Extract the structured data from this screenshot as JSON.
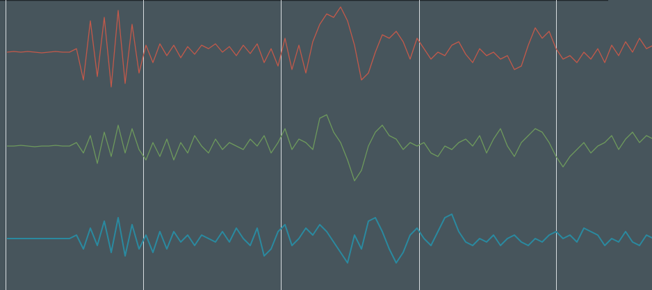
{
  "chart_data": {
    "type": "line",
    "grid": true,
    "series": [
      {
        "color": "#c4594a",
        "values": [
          0,
          1,
          0,
          1,
          0,
          -1,
          0,
          1,
          0,
          0,
          5,
          -40,
          45,
          -35,
          50,
          -50,
          60,
          -45,
          40,
          -30,
          10,
          -15,
          12,
          -5,
          10,
          -8,
          8,
          -3,
          10,
          5,
          12,
          0,
          8,
          -5,
          10,
          -2,
          12,
          -15,
          5,
          -20,
          20,
          -25,
          10,
          -30,
          15,
          40,
          55,
          50,
          65,
          45,
          10,
          -40,
          -30,
          0,
          25,
          20,
          30,
          15,
          -10,
          20,
          5,
          -10,
          0,
          -5,
          10,
          15,
          -3,
          -15,
          5,
          -5,
          0,
          -10,
          -5,
          -25,
          -20,
          10,
          35,
          20,
          30,
          5,
          -10,
          -5,
          -15,
          0,
          -10,
          5,
          -15,
          10,
          -5,
          15,
          0,
          20,
          5,
          10
        ]
      },
      {
        "color": "#6e9a5c",
        "values": [
          0,
          0,
          1,
          0,
          -1,
          0,
          0,
          1,
          0,
          0,
          5,
          -10,
          15,
          -25,
          20,
          -15,
          30,
          -10,
          25,
          -5,
          -20,
          5,
          -15,
          10,
          -20,
          5,
          -10,
          15,
          0,
          -10,
          10,
          -5,
          5,
          0,
          -5,
          10,
          0,
          15,
          -10,
          5,
          25,
          -5,
          10,
          5,
          -5,
          40,
          45,
          20,
          5,
          -20,
          -50,
          -35,
          0,
          20,
          30,
          15,
          10,
          -5,
          5,
          0,
          5,
          -10,
          -15,
          0,
          -5,
          5,
          10,
          0,
          15,
          -10,
          10,
          25,
          0,
          -15,
          5,
          15,
          25,
          20,
          5,
          -15,
          -30,
          -15,
          -5,
          5,
          -10,
          0,
          5,
          15,
          -5,
          10,
          20,
          5,
          15,
          10
        ]
      },
      {
        "color": "#2a8aa0",
        "values": [
          0,
          0,
          0,
          0,
          0,
          0,
          0,
          0,
          0,
          0,
          5,
          -15,
          15,
          -10,
          25,
          -20,
          30,
          -25,
          20,
          -15,
          5,
          -20,
          10,
          -15,
          10,
          -5,
          5,
          -10,
          5,
          0,
          -5,
          10,
          -5,
          15,
          0,
          -10,
          15,
          -25,
          -15,
          10,
          20,
          -10,
          0,
          15,
          5,
          20,
          10,
          -5,
          -20,
          -35,
          5,
          -15,
          25,
          30,
          10,
          -15,
          -35,
          -20,
          5,
          15,
          0,
          -10,
          10,
          30,
          35,
          10,
          -5,
          -10,
          0,
          -5,
          5,
          -10,
          0,
          5,
          -5,
          -10,
          0,
          -5,
          5,
          10,
          0,
          5,
          -5,
          15,
          10,
          5,
          -10,
          0,
          -5,
          10,
          -5,
          -10,
          5,
          0
        ]
      }
    ]
  }
}
